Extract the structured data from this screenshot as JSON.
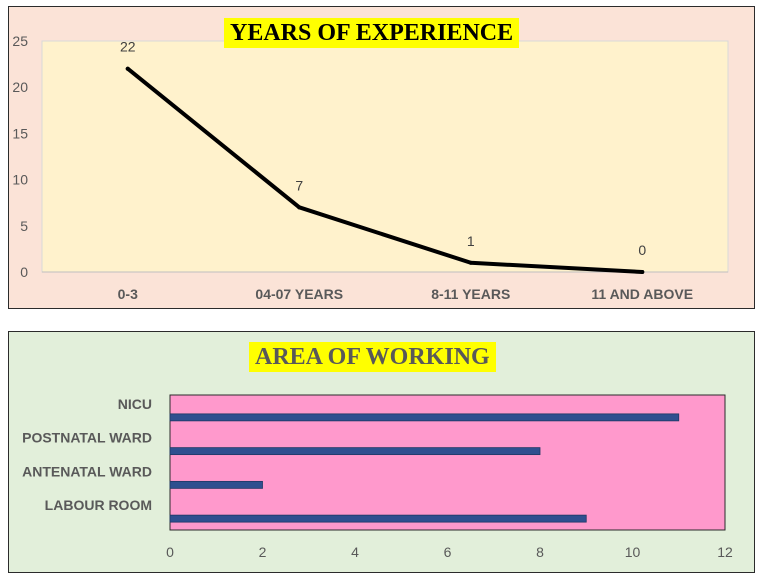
{
  "chart_data": [
    {
      "type": "line",
      "title": "YEARS OF EXPERIENCE",
      "categories": [
        "0-3",
        "04-07 YEARS",
        "8-11 YEARS",
        "11 AND ABOVE"
      ],
      "values": [
        22,
        7,
        1,
        0
      ],
      "ylim": [
        0,
        25
      ],
      "yticks": [
        0,
        5,
        10,
        15,
        20,
        25
      ],
      "data_labels": true,
      "grid": false,
      "legend": "none",
      "colors": {
        "panel": "#fbe3d7",
        "plot": "#fff2cc",
        "line": "#000000",
        "title_bg": "#ffff00"
      }
    },
    {
      "type": "bar",
      "orientation": "horizontal",
      "title": "AREA OF WORKING",
      "categories": [
        "LABOUR ROOM",
        "ANTENATAL WARD",
        "POSTNATAL WARD",
        "NICU"
      ],
      "values": [
        9,
        2,
        8,
        11
      ],
      "xlim": [
        0,
        12
      ],
      "xticks": [
        0,
        2,
        4,
        6,
        8,
        10,
        12
      ],
      "grid": false,
      "legend": "none",
      "colors": {
        "panel": "#e2efda",
        "plot": "#ff99cc",
        "bar": "#2f4f8f",
        "title_bg": "#ffff00",
        "title_text": "#595959"
      }
    }
  ]
}
